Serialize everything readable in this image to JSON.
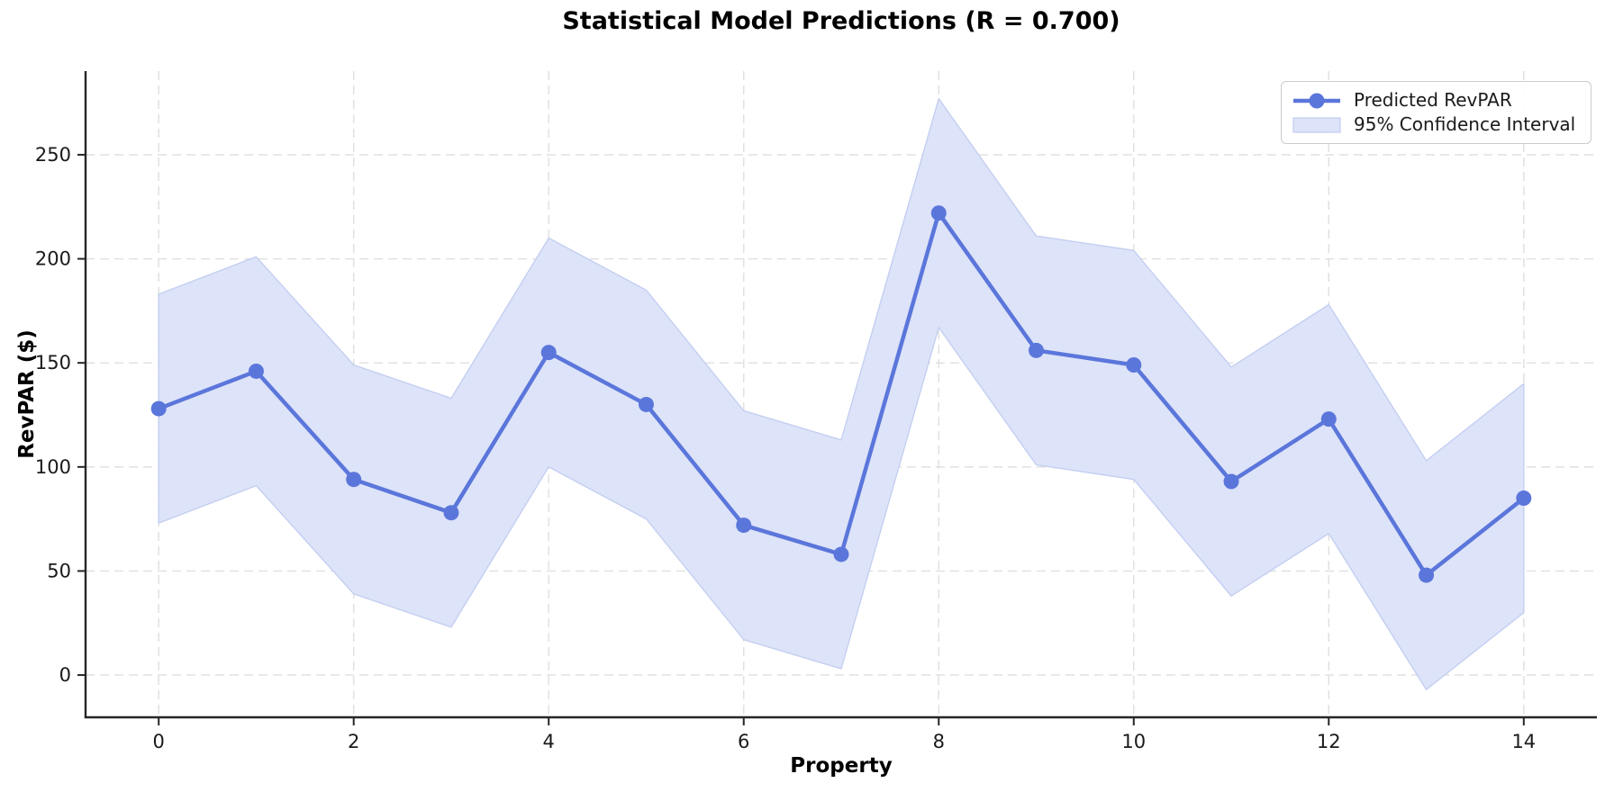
{
  "chart_data": {
    "type": "line",
    "title": "Statistical Model Predictions (R = 0.700)",
    "xlabel": "Property",
    "ylabel": "RevPAR ($)",
    "x": [
      0,
      1,
      2,
      3,
      4,
      5,
      6,
      7,
      8,
      9,
      10,
      11,
      12,
      13,
      14
    ],
    "series": [
      {
        "name": "Predicted RevPAR",
        "type": "line_markers",
        "values": [
          128,
          146,
          94,
          78,
          155,
          130,
          72,
          58,
          222,
          156,
          149,
          93,
          123,
          48,
          85
        ]
      },
      {
        "name": "95% Confidence Interval",
        "type": "band",
        "upper": [
          183,
          201,
          149,
          133,
          210,
          185,
          127,
          113,
          277,
          211,
          204,
          148,
          178,
          103,
          140
        ],
        "lower": [
          73,
          91,
          39,
          23,
          100,
          75,
          17,
          3,
          167,
          101,
          94,
          38,
          68,
          -7,
          30
        ]
      }
    ],
    "x_ticks": [
      0,
      2,
      4,
      6,
      8,
      10,
      12,
      14
    ],
    "y_ticks": [
      0,
      50,
      100,
      150,
      200,
      250
    ],
    "xlim": [
      -0.75,
      14.75
    ],
    "ylim": [
      -20.3,
      290.2
    ],
    "grid": true,
    "grid_style": "dashed",
    "legend_position": "upper right",
    "colors": {
      "line": "#5b76db",
      "marker": "#5b76db",
      "band": "#dde3f8",
      "band_edge": "#c2cdf1",
      "grid": "#e1e1e1",
      "axis": "#262626",
      "tick_text": "#1a1a1a",
      "background": "#ffffff"
    }
  }
}
